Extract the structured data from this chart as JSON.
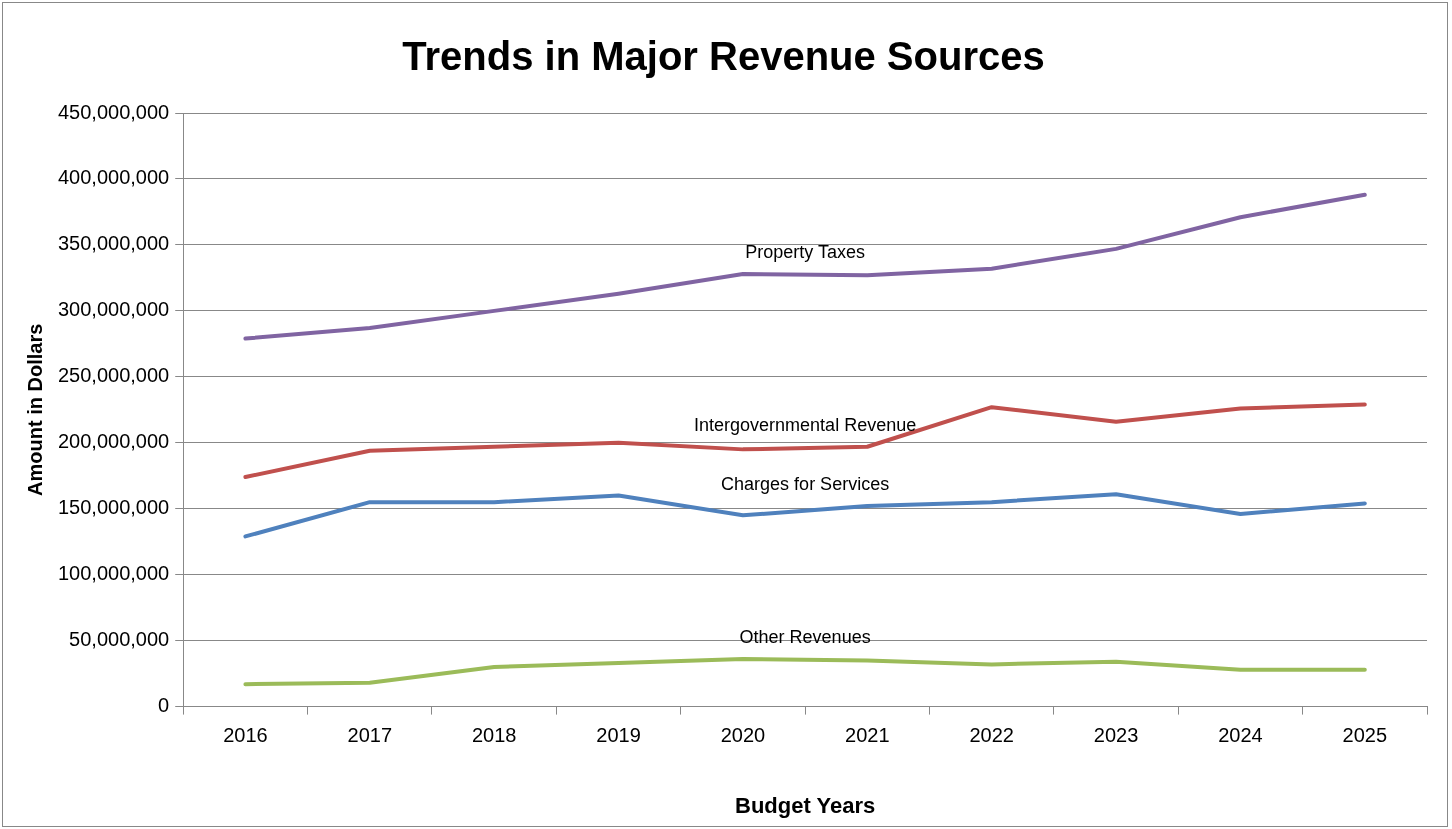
{
  "chart_data": {
    "type": "line",
    "title": "Trends in Major Revenue Sources",
    "xlabel": "Budget Years",
    "ylabel": "Amount in Dollars",
    "categories": [
      "2016",
      "2017",
      "2018",
      "2019",
      "2020",
      "2021",
      "2022",
      "2023",
      "2024",
      "2025"
    ],
    "series": [
      {
        "name": "Property Taxes",
        "color": "#8064a2",
        "values": [
          279000000,
          287000000,
          300000000,
          313000000,
          328000000,
          327000000,
          332000000,
          347000000,
          371000000,
          388000000
        ]
      },
      {
        "name": "Intergovernmental Revenue",
        "color": "#c0504d",
        "values": [
          174000000,
          194000000,
          197000000,
          200000000,
          195000000,
          197000000,
          227000000,
          216000000,
          226000000,
          229000000
        ]
      },
      {
        "name": "Charges for Services",
        "color": "#4f81bd",
        "values": [
          129000000,
          155000000,
          155000000,
          160000000,
          145000000,
          152000000,
          155000000,
          161000000,
          146000000,
          154000000
        ]
      },
      {
        "name": "Other Revenues",
        "color": "#9bbb59",
        "values": [
          17000000,
          18000000,
          30000000,
          33000000,
          36000000,
          35000000,
          32000000,
          34000000,
          28000000,
          28000000
        ]
      }
    ],
    "ylim": [
      0,
      450000000
    ],
    "yticks": [
      0,
      {
        "value": 50000000,
        "label": "50,000,000"
      },
      {
        "value": 100000000,
        "label": "100,000,000"
      },
      {
        "value": 150000000,
        "label": "150,000,000"
      },
      {
        "value": 200000000,
        "label": "200,000,000"
      },
      {
        "value": 250000000,
        "label": "250,000,000"
      },
      {
        "value": 300000000,
        "label": "300,000,000"
      },
      {
        "value": 350000000,
        "label": "350,000,000"
      },
      {
        "value": 400000000,
        "label": "400,000,000"
      },
      {
        "value": 450000000,
        "label": "450,000,000"
      }
    ],
    "grid": "y",
    "legend": false,
    "marker": "none",
    "line_style": "solid"
  }
}
